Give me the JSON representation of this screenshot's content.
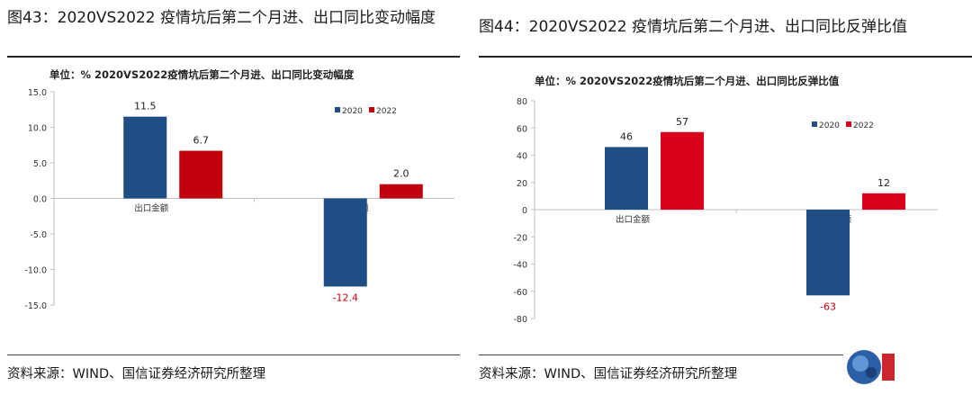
{
  "figures": [
    {
      "figure_title": "图43：2020VS2022 疫情坑后第二个月进、出口同比变动幅度",
      "source": "资料来源：WIND、国信证券经济研究所整理",
      "chart_data": {
        "type": "bar",
        "title": "单位：%  2020VS2022疫情坑后第二个月进、出口同比变动幅度",
        "categories": [
          "出口金额",
          "出口金额"
        ],
        "series": [
          {
            "name": "2020",
            "values": [
              11.5,
              -12.4
            ],
            "labels": [
              "11.5",
              "-12.4"
            ],
            "color": "#1f4e84"
          },
          {
            "name": "2022",
            "values": [
              6.7,
              2.0
            ],
            "labels": [
              "6.7",
              "2.0"
            ],
            "color": "#c0000c"
          }
        ],
        "ylim": [
          -15,
          15
        ],
        "yticks": [
          15,
          10,
          5,
          0,
          -5,
          -10,
          -15
        ],
        "ytick_labels": [
          "15.0",
          "10.0",
          "5.0",
          "0.0",
          "-5.0",
          "-10.0",
          "-15.0"
        ],
        "legend_position": "top-right",
        "grid": false
      }
    },
    {
      "figure_title": "图44：2020VS2022 疫情坑后第二个月进、出口同比反弹比值",
      "source": "资料来源：WIND、国信证券经济研究所整理",
      "chart_data": {
        "type": "bar",
        "title": "单位：%  2020VS2022疫情坑后第二个月进、出口同比反弹比值",
        "categories": [
          "出口金额",
          "出口金额"
        ],
        "series": [
          {
            "name": "2020",
            "values": [
              46,
              -63
            ],
            "labels": [
              "46",
              "-63"
            ],
            "color": "#1f4e84"
          },
          {
            "name": "2022",
            "values": [
              57,
              12
            ],
            "labels": [
              "57",
              "12"
            ],
            "color": "#d8001a"
          }
        ],
        "ylim": [
          -80,
          80
        ],
        "yticks": [
          80,
          60,
          40,
          20,
          0,
          -20,
          -40,
          -60,
          -80
        ],
        "ytick_labels": [
          "80",
          "60",
          "40",
          "20",
          "0",
          "-20",
          "-40",
          "-60",
          "-80"
        ],
        "legend_position": "top-right",
        "grid": false
      }
    }
  ]
}
